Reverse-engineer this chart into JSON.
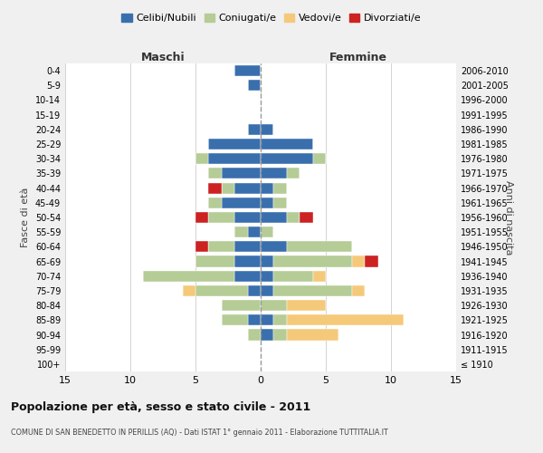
{
  "age_groups": [
    "100+",
    "95-99",
    "90-94",
    "85-89",
    "80-84",
    "75-79",
    "70-74",
    "65-69",
    "60-64",
    "55-59",
    "50-54",
    "45-49",
    "40-44",
    "35-39",
    "30-34",
    "25-29",
    "20-24",
    "15-19",
    "10-14",
    "5-9",
    "0-4"
  ],
  "birth_years": [
    "≤ 1910",
    "1911-1915",
    "1916-1920",
    "1921-1925",
    "1926-1930",
    "1931-1935",
    "1936-1940",
    "1941-1945",
    "1946-1950",
    "1951-1955",
    "1956-1960",
    "1961-1965",
    "1966-1970",
    "1971-1975",
    "1976-1980",
    "1981-1985",
    "1986-1990",
    "1991-1995",
    "1996-2000",
    "2001-2005",
    "2006-2010"
  ],
  "colors": {
    "celibi": "#3a6fad",
    "coniugati": "#b5cc96",
    "vedovi": "#f5c97a",
    "divorziati": "#cc2222"
  },
  "maschi": {
    "celibi": [
      0,
      0,
      0,
      1,
      0,
      1,
      2,
      2,
      2,
      1,
      2,
      3,
      2,
      3,
      4,
      4,
      1,
      0,
      0,
      1,
      2
    ],
    "coniugati": [
      0,
      0,
      1,
      2,
      3,
      4,
      7,
      3,
      2,
      1,
      2,
      1,
      1,
      1,
      1,
      0,
      0,
      0,
      0,
      0,
      0
    ],
    "vedovi": [
      0,
      0,
      0,
      0,
      0,
      1,
      0,
      0,
      0,
      0,
      0,
      0,
      0,
      0,
      0,
      0,
      0,
      0,
      0,
      0,
      0
    ],
    "divorziati": [
      0,
      0,
      0,
      0,
      0,
      0,
      0,
      0,
      1,
      0,
      1,
      0,
      1,
      0,
      0,
      0,
      0,
      0,
      0,
      0,
      0
    ]
  },
  "femmine": {
    "celibi": [
      0,
      0,
      1,
      1,
      0,
      1,
      1,
      1,
      2,
      0,
      2,
      1,
      1,
      2,
      4,
      4,
      1,
      0,
      0,
      0,
      0
    ],
    "coniugati": [
      0,
      0,
      1,
      1,
      2,
      6,
      3,
      6,
      5,
      1,
      1,
      1,
      1,
      1,
      1,
      0,
      0,
      0,
      0,
      0,
      0
    ],
    "vedovi": [
      0,
      0,
      4,
      9,
      3,
      1,
      1,
      1,
      0,
      0,
      0,
      0,
      0,
      0,
      0,
      0,
      0,
      0,
      0,
      0,
      0
    ],
    "divorziati": [
      0,
      0,
      0,
      0,
      0,
      0,
      0,
      1,
      0,
      0,
      1,
      0,
      0,
      0,
      0,
      0,
      0,
      0,
      0,
      0,
      0
    ]
  },
  "xlim": 15,
  "title": "Popolazione per età, sesso e stato civile - 2011",
  "subtitle": "COMUNE DI SAN BENEDETTO IN PERILLIS (AQ) - Dati ISTAT 1° gennaio 2011 - Elaborazione TUTTITALIA.IT",
  "ylabel_left": "Fasce di età",
  "ylabel_right": "Anni di nascita",
  "xlabel_left": "Maschi",
  "xlabel_right": "Femmine",
  "legend_labels": [
    "Celibi/Nubili",
    "Coniugati/e",
    "Vedovi/e",
    "Divorziati/e"
  ],
  "bg_color": "#f0f0f0",
  "plot_bg_color": "#ffffff"
}
